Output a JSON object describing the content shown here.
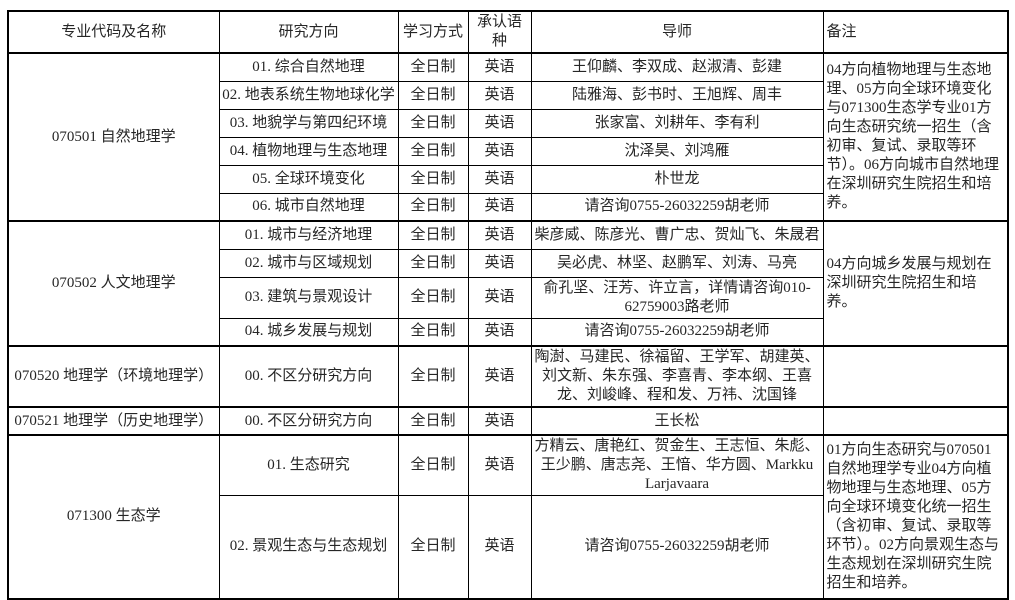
{
  "page": {
    "background": "#ffffff",
    "border_color": "#000000",
    "text_color": "#262626"
  },
  "table": {
    "headers": [
      "专业代码及名称",
      "研究方向",
      "学习方式",
      "承认语种",
      "导师",
      "备注"
    ],
    "sections": [
      {
        "program": "070501 自然地理学",
        "remark": "04方向植物地理与生态地理、05方向全球环境变化与071300生态学专业01方向生态研究统一招生（含初审、复试、录取等环节）。06方向城市自然地理在深圳研究生院招生和培养。",
        "rows": [
          {
            "direction": "01. 综合自然地理",
            "mode": "全日制",
            "language": "英语",
            "advisors": "王仰麟、李双成、赵淑清、彭建"
          },
          {
            "direction": "02. 地表系统生物地球化学",
            "mode": "全日制",
            "language": "英语",
            "advisors": "陆雅海、彭书时、王旭辉、周丰"
          },
          {
            "direction": "03. 地貌学与第四纪环境",
            "mode": "全日制",
            "language": "英语",
            "advisors": "张家富、刘耕年、李有利"
          },
          {
            "direction": "04. 植物地理与生态地理",
            "mode": "全日制",
            "language": "英语",
            "advisors": "沈泽昊、刘鸿雁"
          },
          {
            "direction": "05. 全球环境变化",
            "mode": "全日制",
            "language": "英语",
            "advisors": "朴世龙"
          },
          {
            "direction": "06. 城市自然地理",
            "mode": "全日制",
            "language": "英语",
            "advisors": "请咨询0755-26032259胡老师"
          }
        ]
      },
      {
        "program": "070502 人文地理学",
        "remark": "04方向城乡发展与规划在深圳研究生院招生和培养。",
        "rows": [
          {
            "direction": "01. 城市与经济地理",
            "mode": "全日制",
            "language": "英语",
            "advisors": "柴彦威、陈彦光、曹广忠、贺灿飞、朱晟君"
          },
          {
            "direction": "02. 城市与区域规划",
            "mode": "全日制",
            "language": "英语",
            "advisors": "吴必虎、林坚、赵鹏军、刘涛、马亮"
          },
          {
            "direction": "03. 建筑与景观设计",
            "mode": "全日制",
            "language": "英语",
            "advisors": "俞孔坚、汪芳、许立言，详情请咨询010-62759003路老师"
          },
          {
            "direction": "04. 城乡发展与规划",
            "mode": "全日制",
            "language": "英语",
            "advisors": "请咨询0755-26032259胡老师"
          }
        ]
      },
      {
        "program": "070520 地理学（环境地理学）",
        "remark": "",
        "rows": [
          {
            "direction": "00. 不区分研究方向",
            "mode": "全日制",
            "language": "英语",
            "advisors": "陶澍、马建民、徐福留、王学军、胡建英、刘文新、朱东强、李喜青、李本纲、王喜龙、刘峻峰、程和发、万祎、沈国锋"
          }
        ]
      },
      {
        "program": "070521 地理学（历史地理学）",
        "remark": "",
        "rows": [
          {
            "direction": "00. 不区分研究方向",
            "mode": "全日制",
            "language": "英语",
            "advisors": "王长松"
          }
        ]
      },
      {
        "program": "071300 生态学",
        "remark": "01方向生态研究与070501自然地理学专业04方向植物地理与生态地理、05方向全球环境变化统一招生（含初审、复试、录取等环节）。02方向景观生态与生态规划在深圳研究生院招生和培养。",
        "rows": [
          {
            "direction": "01. 生态研究",
            "mode": "全日制",
            "language": "英语",
            "advisors": "方精云、唐艳红、贺金生、王志恒、朱彪、王少鹏、唐志尧、王愔、华方圆、Markku Larjavaara"
          },
          {
            "direction": "02. 景观生态与生态规划",
            "mode": "全日制",
            "language": "英语",
            "advisors": "请咨询0755-26032259胡老师"
          }
        ]
      }
    ]
  }
}
